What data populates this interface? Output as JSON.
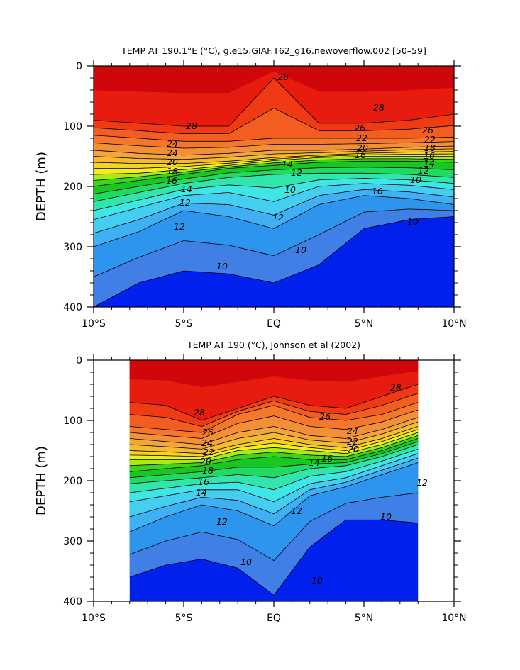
{
  "palette": {
    "10": "#3f7fe6",
    "11": "#2e95ef",
    "12": "#3fb0f4",
    "13": "#44cff1",
    "14": "#3ee7e5",
    "15": "#31e6ad",
    "16": "#21da61",
    "17": "#17c821",
    "18": "#3ed41a",
    "19": "#a9ea18",
    "20": "#f3ee1a",
    "21": "#f6d31d",
    "22": "#f4bb30",
    "23": "#f3a53c",
    "24": "#f38f37",
    "25": "#f4772b",
    "26": "#f35e20",
    "27": "#ef3a14",
    "28": "#e81b0f",
    "29": "#cf070a",
    "deep": "#0020ee"
  },
  "chart_data": [
    {
      "type": "contour",
      "title": "TEMP AT 190.1°E (°C), g.e15.GIAF.T62_g16.newoverflow.002 [50–59]",
      "ylabel": "DEPTH (m)",
      "xlabel": "",
      "xticks": [
        "10°S",
        "5°S",
        "EQ",
        "5°N",
        "10°N"
      ],
      "yticks": [
        "0",
        "100",
        "200",
        "300",
        "400"
      ],
      "xlim": [
        -10,
        10
      ],
      "ylim": [
        400,
        0
      ],
      "data_xlim": [
        -10,
        10
      ],
      "contour_labels": [
        "28",
        "28",
        "28",
        "26",
        "26",
        "24",
        "24",
        "22",
        "22",
        "20",
        "20",
        "18",
        "18",
        "16",
        "16",
        "16",
        "14",
        "14",
        "14",
        "12",
        "12",
        "12",
        "10",
        "10",
        "10"
      ],
      "isotherm_depths": {
        "x": [
          -10,
          -7.5,
          -5,
          -2.5,
          0,
          2.5,
          5,
          7.5,
          10
        ],
        "t28": [
          90,
          95,
          100,
          100,
          20,
          95,
          95,
          90,
          80
        ],
        "t26": [
          115,
          120,
          125,
          125,
          120,
          120,
          120,
          120,
          118
        ],
        "t24": [
          140,
          145,
          148,
          145,
          140,
          140,
          138,
          135,
          133
        ],
        "t22": [
          160,
          162,
          162,
          158,
          152,
          148,
          145,
          143,
          142
        ],
        "t20": [
          180,
          178,
          172,
          165,
          157,
          152,
          150,
          150,
          150
        ],
        "t18": [
          200,
          190,
          180,
          170,
          165,
          160,
          158,
          158,
          160
        ],
        "t16": [
          225,
          210,
          195,
          185,
          180,
          178,
          178,
          180,
          185
        ],
        "t14": [
          255,
          235,
          215,
          210,
          225,
          200,
          195,
          198,
          205
        ],
        "t12": [
          300,
          275,
          240,
          250,
          270,
          230,
          215,
          220,
          230
        ],
        "t10": [
          400,
          360,
          340,
          345,
          360,
          330,
          270,
          255,
          250
        ]
      }
    },
    {
      "type": "contour",
      "title": "TEMP AT 190 (°C), Johnson et al (2002)",
      "ylabel": "DEPTH (m)",
      "xlabel": "",
      "xticks": [
        "10°S",
        "5°S",
        "EQ",
        "5°N",
        "10°N"
      ],
      "yticks": [
        "0",
        "100",
        "200",
        "300",
        "400"
      ],
      "xlim": [
        -10,
        10
      ],
      "ylim": [
        400,
        0
      ],
      "data_xlim": [
        -8,
        8
      ],
      "contour_labels": [
        "28",
        "28",
        "26",
        "26",
        "24",
        "24",
        "22",
        "22",
        "20",
        "20",
        "18",
        "16",
        "16",
        "14",
        "14",
        "12",
        "12",
        "12",
        "10",
        "10",
        "10"
      ],
      "isotherm_depths": {
        "x": [
          -8,
          -6,
          -4,
          -2,
          0,
          2,
          4,
          6,
          8
        ],
        "t28": [
          70,
          75,
          100,
          80,
          60,
          75,
          80,
          60,
          40
        ],
        "t26": [
          110,
          115,
          120,
          90,
          75,
          95,
          100,
          90,
          70
        ],
        "t24": [
          130,
          135,
          140,
          120,
          110,
          125,
          130,
          115,
          95
        ],
        "t22": [
          150,
          152,
          155,
          140,
          130,
          140,
          145,
          130,
          110
        ],
        "t20": [
          165,
          165,
          165,
          150,
          145,
          150,
          155,
          140,
          120
        ],
        "t18": [
          185,
          180,
          175,
          165,
          160,
          165,
          165,
          150,
          130
        ],
        "t16": [
          205,
          200,
          195,
          190,
          195,
          180,
          175,
          160,
          140
        ],
        "t14": [
          235,
          225,
          215,
          215,
          235,
          205,
          195,
          175,
          155
        ],
        "t12": [
          285,
          260,
          240,
          250,
          275,
          225,
          210,
          190,
          170
        ],
        "t10": [
          360,
          340,
          330,
          345,
          390,
          310,
          265,
          265,
          270
        ]
      }
    }
  ]
}
